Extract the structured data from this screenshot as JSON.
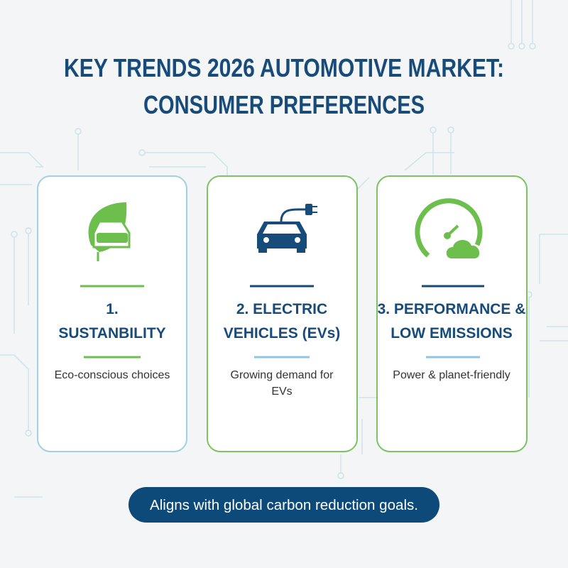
{
  "header": {
    "title_lines": [
      "KEY TRENDS 2026 AUTOMOTIVE MARKET:",
      "CONSUMER PREFERENCES"
    ]
  },
  "cards": [
    {
      "title_lines": [
        "1.",
        "SUSTANBILITY"
      ],
      "description_lines": [
        "Eco-conscious choices"
      ]
    },
    {
      "title_lines": [
        "2. ELECTRIC",
        "VEHICLES (EVs)"
      ],
      "description_lines": [
        "Growing demand for",
        "EVs"
      ]
    },
    {
      "title_lines": [
        "3. PERFORMANCE &",
        "LOW EMISSIONS"
      ],
      "description_lines": [
        "Power & planet-friendly"
      ]
    }
  ],
  "footer": {
    "text": "Aligns with global carbon reduction goals."
  }
}
